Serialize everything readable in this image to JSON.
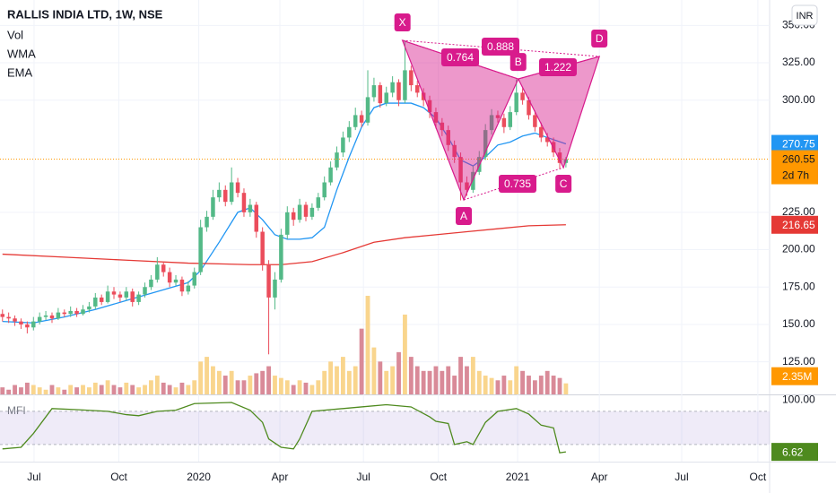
{
  "chart_data": [
    {
      "type": "candlestick",
      "title": "RALLIS INDIA LTD, 1W, NSE",
      "currency": "INR",
      "xlim": [
        -0.4,
        123.9
      ],
      "xticks": [
        {
          "value": 5.1,
          "label": "Jul"
        },
        {
          "value": 18.8,
          "label": "Oct"
        },
        {
          "value": 31.7,
          "label": "2020"
        },
        {
          "value": 44.8,
          "label": "Apr"
        },
        {
          "value": 58.3,
          "label": "Jul"
        },
        {
          "value": 70.4,
          "label": "Oct"
        },
        {
          "value": 83.2,
          "label": "2021"
        },
        {
          "value": 96.4,
          "label": "Apr"
        },
        {
          "value": 109.7,
          "label": "Jul"
        },
        {
          "value": 122,
          "label": "Oct"
        }
      ],
      "ylim": [
        103.2,
        367
      ],
      "yticks": [
        {
          "value": 125,
          "label": "125.00"
        },
        {
          "value": 150,
          "label": "150.00"
        },
        {
          "value": 175,
          "label": "175.00"
        },
        {
          "value": 200,
          "label": "200.00"
        },
        {
          "value": 225,
          "label": "225.00"
        },
        {
          "value": 300,
          "label": "300.00"
        },
        {
          "value": 325,
          "label": "325.00"
        },
        {
          "value": 350,
          "label": "350.00"
        }
      ],
      "grid": true,
      "up_color": "#53b987",
      "down_color": "#eb4d5c",
      "candles": [
        [
          157,
          160,
          152,
          155
        ],
        [
          155,
          158,
          151,
          154
        ],
        [
          154,
          156,
          149,
          152
        ],
        [
          152,
          154,
          147,
          150
        ],
        [
          150,
          152,
          144,
          148
        ],
        [
          148,
          155,
          146,
          152
        ],
        [
          152,
          158,
          150,
          155
        ],
        [
          155,
          159,
          153,
          156
        ],
        [
          156,
          158,
          151,
          154
        ],
        [
          154,
          161,
          153,
          158
        ],
        [
          158,
          160,
          155,
          157
        ],
        [
          157,
          162,
          155,
          159
        ],
        [
          159,
          161,
          155,
          157
        ],
        [
          157,
          163,
          156,
          160
        ],
        [
          160,
          165,
          158,
          162
        ],
        [
          162,
          171,
          160,
          168
        ],
        [
          168,
          170,
          163,
          165
        ],
        [
          165,
          176,
          164,
          172
        ],
        [
          172,
          175,
          167,
          170
        ],
        [
          170,
          172,
          165,
          168
        ],
        [
          168,
          175,
          166,
          172
        ],
        [
          172,
          174,
          162,
          165
        ],
        [
          165,
          172,
          163,
          170
        ],
        [
          170,
          178,
          168,
          175
        ],
        [
          175,
          183,
          173,
          180
        ],
        [
          180,
          195,
          178,
          190
        ],
        [
          190,
          192,
          182,
          185
        ],
        [
          185,
          188,
          175,
          178
        ],
        [
          178,
          183,
          176,
          180
        ],
        [
          180,
          182,
          169,
          172
        ],
        [
          172,
          179,
          170,
          176
        ],
        [
          176,
          188,
          174,
          185
        ],
        [
          185,
          220,
          183,
          215
        ],
        [
          215,
          226,
          212,
          222
        ],
        [
          222,
          240,
          220,
          235
        ],
        [
          235,
          245,
          232,
          240
        ],
        [
          240,
          243,
          229,
          232
        ],
        [
          232,
          255,
          230,
          245
        ],
        [
          245,
          248,
          235,
          238
        ],
        [
          238,
          241,
          222,
          225
        ],
        [
          225,
          234,
          222,
          230
        ],
        [
          230,
          232,
          208,
          212
        ],
        [
          212,
          215,
          186,
          190
        ],
        [
          190,
          193,
          130,
          168
        ],
        [
          168,
          185,
          160,
          180
        ],
        [
          180,
          214,
          178,
          210
        ],
        [
          210,
          229,
          207,
          225
        ],
        [
          225,
          228,
          216,
          220
        ],
        [
          220,
          234,
          218,
          230
        ],
        [
          230,
          232,
          219,
          222
        ],
        [
          222,
          231,
          220,
          228
        ],
        [
          228,
          238,
          226,
          235
        ],
        [
          235,
          249,
          233,
          245
        ],
        [
          245,
          259,
          243,
          255
        ],
        [
          255,
          269,
          253,
          265
        ],
        [
          265,
          279,
          262,
          275
        ],
        [
          275,
          286,
          272,
          282
        ],
        [
          282,
          295,
          280,
          290
        ],
        [
          290,
          293,
          282,
          285
        ],
        [
          285,
          320,
          283,
          302
        ],
        [
          302,
          315,
          299,
          310
        ],
        [
          310,
          312,
          295,
          298
        ],
        [
          298,
          309,
          296,
          305
        ],
        [
          305,
          316,
          302,
          312
        ],
        [
          312,
          314,
          296,
          300
        ],
        [
          300,
          340,
          298,
          320
        ],
        [
          320,
          323,
          306,
          310
        ],
        [
          310,
          313,
          302,
          305
        ],
        [
          305,
          308,
          296,
          300
        ],
        [
          300,
          303,
          288,
          292
        ],
        [
          292,
          295,
          281,
          285
        ],
        [
          285,
          288,
          276,
          280
        ],
        [
          280,
          283,
          266,
          270
        ],
        [
          270,
          273,
          258,
          262
        ],
        [
          262,
          265,
          233,
          245
        ],
        [
          245,
          249,
          236,
          240
        ],
        [
          240,
          256,
          238,
          252
        ],
        [
          252,
          266,
          250,
          262
        ],
        [
          262,
          284,
          260,
          280
        ],
        [
          280,
          294,
          277,
          290
        ],
        [
          290,
          293,
          285,
          288
        ],
        [
          288,
          291,
          278,
          282
        ],
        [
          282,
          296,
          280,
          292
        ],
        [
          292,
          314,
          290,
          305
        ],
        [
          305,
          308,
          297,
          300
        ],
        [
          300,
          302,
          287,
          290
        ],
        [
          290,
          293,
          279,
          282
        ],
        [
          282,
          285,
          272,
          275
        ],
        [
          275,
          278,
          269,
          272
        ],
        [
          272,
          275,
          262,
          265
        ],
        [
          265,
          268,
          254,
          258
        ],
        [
          258,
          262,
          255,
          260.55
        ]
      ],
      "last_price": 260.55,
      "countdown": "2d 7h",
      "volume": {
        "name": "Vol",
        "vlim": [
          0,
          84
        ],
        "up_color": "#f9d58d",
        "down_color": "#d98a98",
        "last_label": "2.35M",
        "values": [
          1.5,
          1,
          2,
          1.5,
          2.5,
          2,
          1.5,
          1,
          2,
          1.5,
          1,
          2,
          1.5,
          2,
          1.5,
          2.5,
          2,
          3,
          2,
          1.5,
          2.5,
          2,
          1.5,
          2,
          3,
          4,
          2.5,
          2,
          1.5,
          2.5,
          2,
          3,
          7,
          8,
          6,
          5,
          4,
          5,
          3,
          3,
          4,
          4.5,
          5,
          6,
          4,
          3.5,
          3,
          2,
          3,
          2.5,
          2,
          3,
          5,
          7,
          6,
          8,
          5,
          6,
          14,
          21,
          10,
          7,
          5,
          6,
          9,
          17,
          8,
          6,
          5,
          5,
          6,
          5,
          6,
          4,
          8,
          6,
          8,
          5,
          4,
          3.5,
          3,
          4,
          3,
          6,
          5,
          4,
          3,
          4,
          5,
          4,
          3.5,
          2.35
        ]
      },
      "series": [
        {
          "name": "WMA",
          "color": "#2196f3",
          "x": [
            0,
            5,
            10,
            15,
            20,
            25,
            30,
            32,
            35,
            38,
            40,
            42,
            44,
            46,
            48,
            50,
            52,
            54,
            56,
            58,
            60,
            62,
            64,
            66,
            68,
            70,
            72,
            74,
            76,
            78,
            80,
            82,
            84,
            86,
            88,
            91
          ],
          "values": [
            152,
            151,
            155,
            160,
            166,
            172,
            178,
            186,
            205,
            225,
            228,
            220,
            210,
            207,
            207,
            208,
            215,
            240,
            262,
            282,
            295,
            298,
            298,
            298,
            295,
            288,
            275,
            260,
            256,
            262,
            270,
            272,
            276,
            278,
            275,
            270.75
          ]
        },
        {
          "name": "EMA",
          "color": "#e53935",
          "x": [
            0,
            10,
            20,
            30,
            40,
            45,
            50,
            55,
            60,
            65,
            70,
            75,
            80,
            85,
            91
          ],
          "values": [
            197,
            195,
            193,
            191,
            190,
            190,
            192,
            198,
            205,
            208,
            210,
            212,
            214,
            216,
            216.65
          ]
        }
      ],
      "pattern": {
        "color": "#d81b8c",
        "points": [
          {
            "label": "X",
            "x": 64.6,
            "y": 340
          },
          {
            "label": "A",
            "x": 74.5,
            "y": 233.3
          },
          {
            "label": "B",
            "x": 83.3,
            "y": 314.2
          },
          {
            "label": "C",
            "x": 90.6,
            "y": 254.9
          },
          {
            "label": "D",
            "x": 96.4,
            "y": 329.2
          }
        ],
        "ratios": [
          0.764,
          0.888,
          1.222,
          0.735
        ]
      }
    },
    {
      "type": "line",
      "title": "MFI",
      "ylim": [
        -11,
        109
      ],
      "yticks": [
        {
          "value": 100,
          "label": "100.00"
        }
      ],
      "bands": [
        20,
        80
      ],
      "series": [
        {
          "color": "#4e8a1e",
          "x": [
            0,
            3,
            5,
            8,
            12,
            17,
            20,
            22,
            25,
            28,
            31,
            34,
            37,
            40,
            42,
            43,
            45,
            47,
            48,
            50,
            55,
            58,
            62,
            66,
            69,
            70,
            72,
            73,
            75,
            76,
            78,
            80,
            83,
            85,
            87,
            89,
            90,
            91
          ],
          "values": [
            12,
            15,
            40,
            85,
            83,
            80,
            74,
            72,
            80,
            82,
            94,
            95,
            96,
            82,
            60,
            30,
            15,
            12,
            30,
            80,
            85,
            88,
            92,
            88,
            70,
            62,
            58,
            20,
            25,
            20,
            60,
            80,
            85,
            75,
            55,
            50,
            5,
            6.62
          ]
        }
      ]
    }
  ]
}
